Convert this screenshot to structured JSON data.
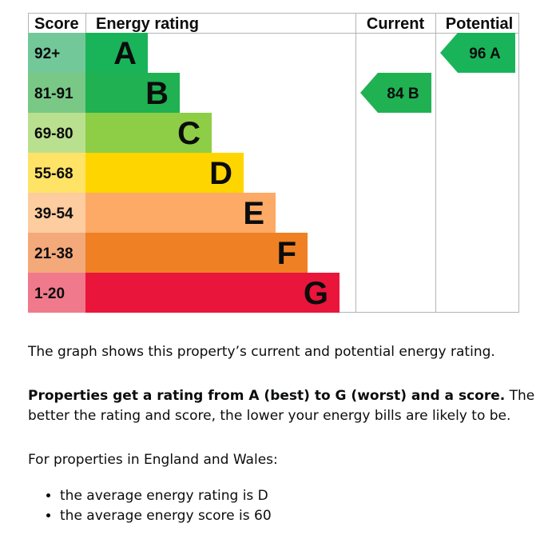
{
  "chart_data": {
    "type": "table",
    "headers": {
      "score": "Score",
      "rating": "Energy rating",
      "current": "Current",
      "potential": "Potential"
    },
    "bands": [
      {
        "score": "92+",
        "letter": "A",
        "color": "#19b459",
        "score_bg": "#73c89a"
      },
      {
        "score": "81-91",
        "letter": "B",
        "color": "#20b153",
        "score_bg": "#79c885"
      },
      {
        "score": "69-80",
        "letter": "C",
        "color": "#8dce46",
        "score_bg": "#b9e08e"
      },
      {
        "score": "55-68",
        "letter": "D",
        "color": "#ffd500",
        "score_bg": "#ffe366"
      },
      {
        "score": "39-54",
        "letter": "E",
        "color": "#fcaa65",
        "score_bg": "#fdcc9f"
      },
      {
        "score": "21-38",
        "letter": "F",
        "color": "#ef8023",
        "score_bg": "#f4a97a"
      },
      {
        "score": "1-20",
        "letter": "G",
        "color": "#e9153b",
        "score_bg": "#f07a8c"
      }
    ],
    "current": {
      "score": 84,
      "letter": "B",
      "label": "84 B",
      "color": "#20b153"
    },
    "potential": {
      "score": 96,
      "letter": "A",
      "label": "96 A",
      "color": "#19b459"
    }
  },
  "text": {
    "intro": "The graph shows this property’s current and potential energy rating.",
    "explain_bold": "Properties get a rating from A (best) to G (worst) and a score.",
    "explain_rest": " The better the rating and score, the lower your energy bills are likely to be.",
    "region": "For properties in England and Wales:",
    "averages": [
      "the average energy rating is D",
      "the average energy score is 60"
    ]
  }
}
